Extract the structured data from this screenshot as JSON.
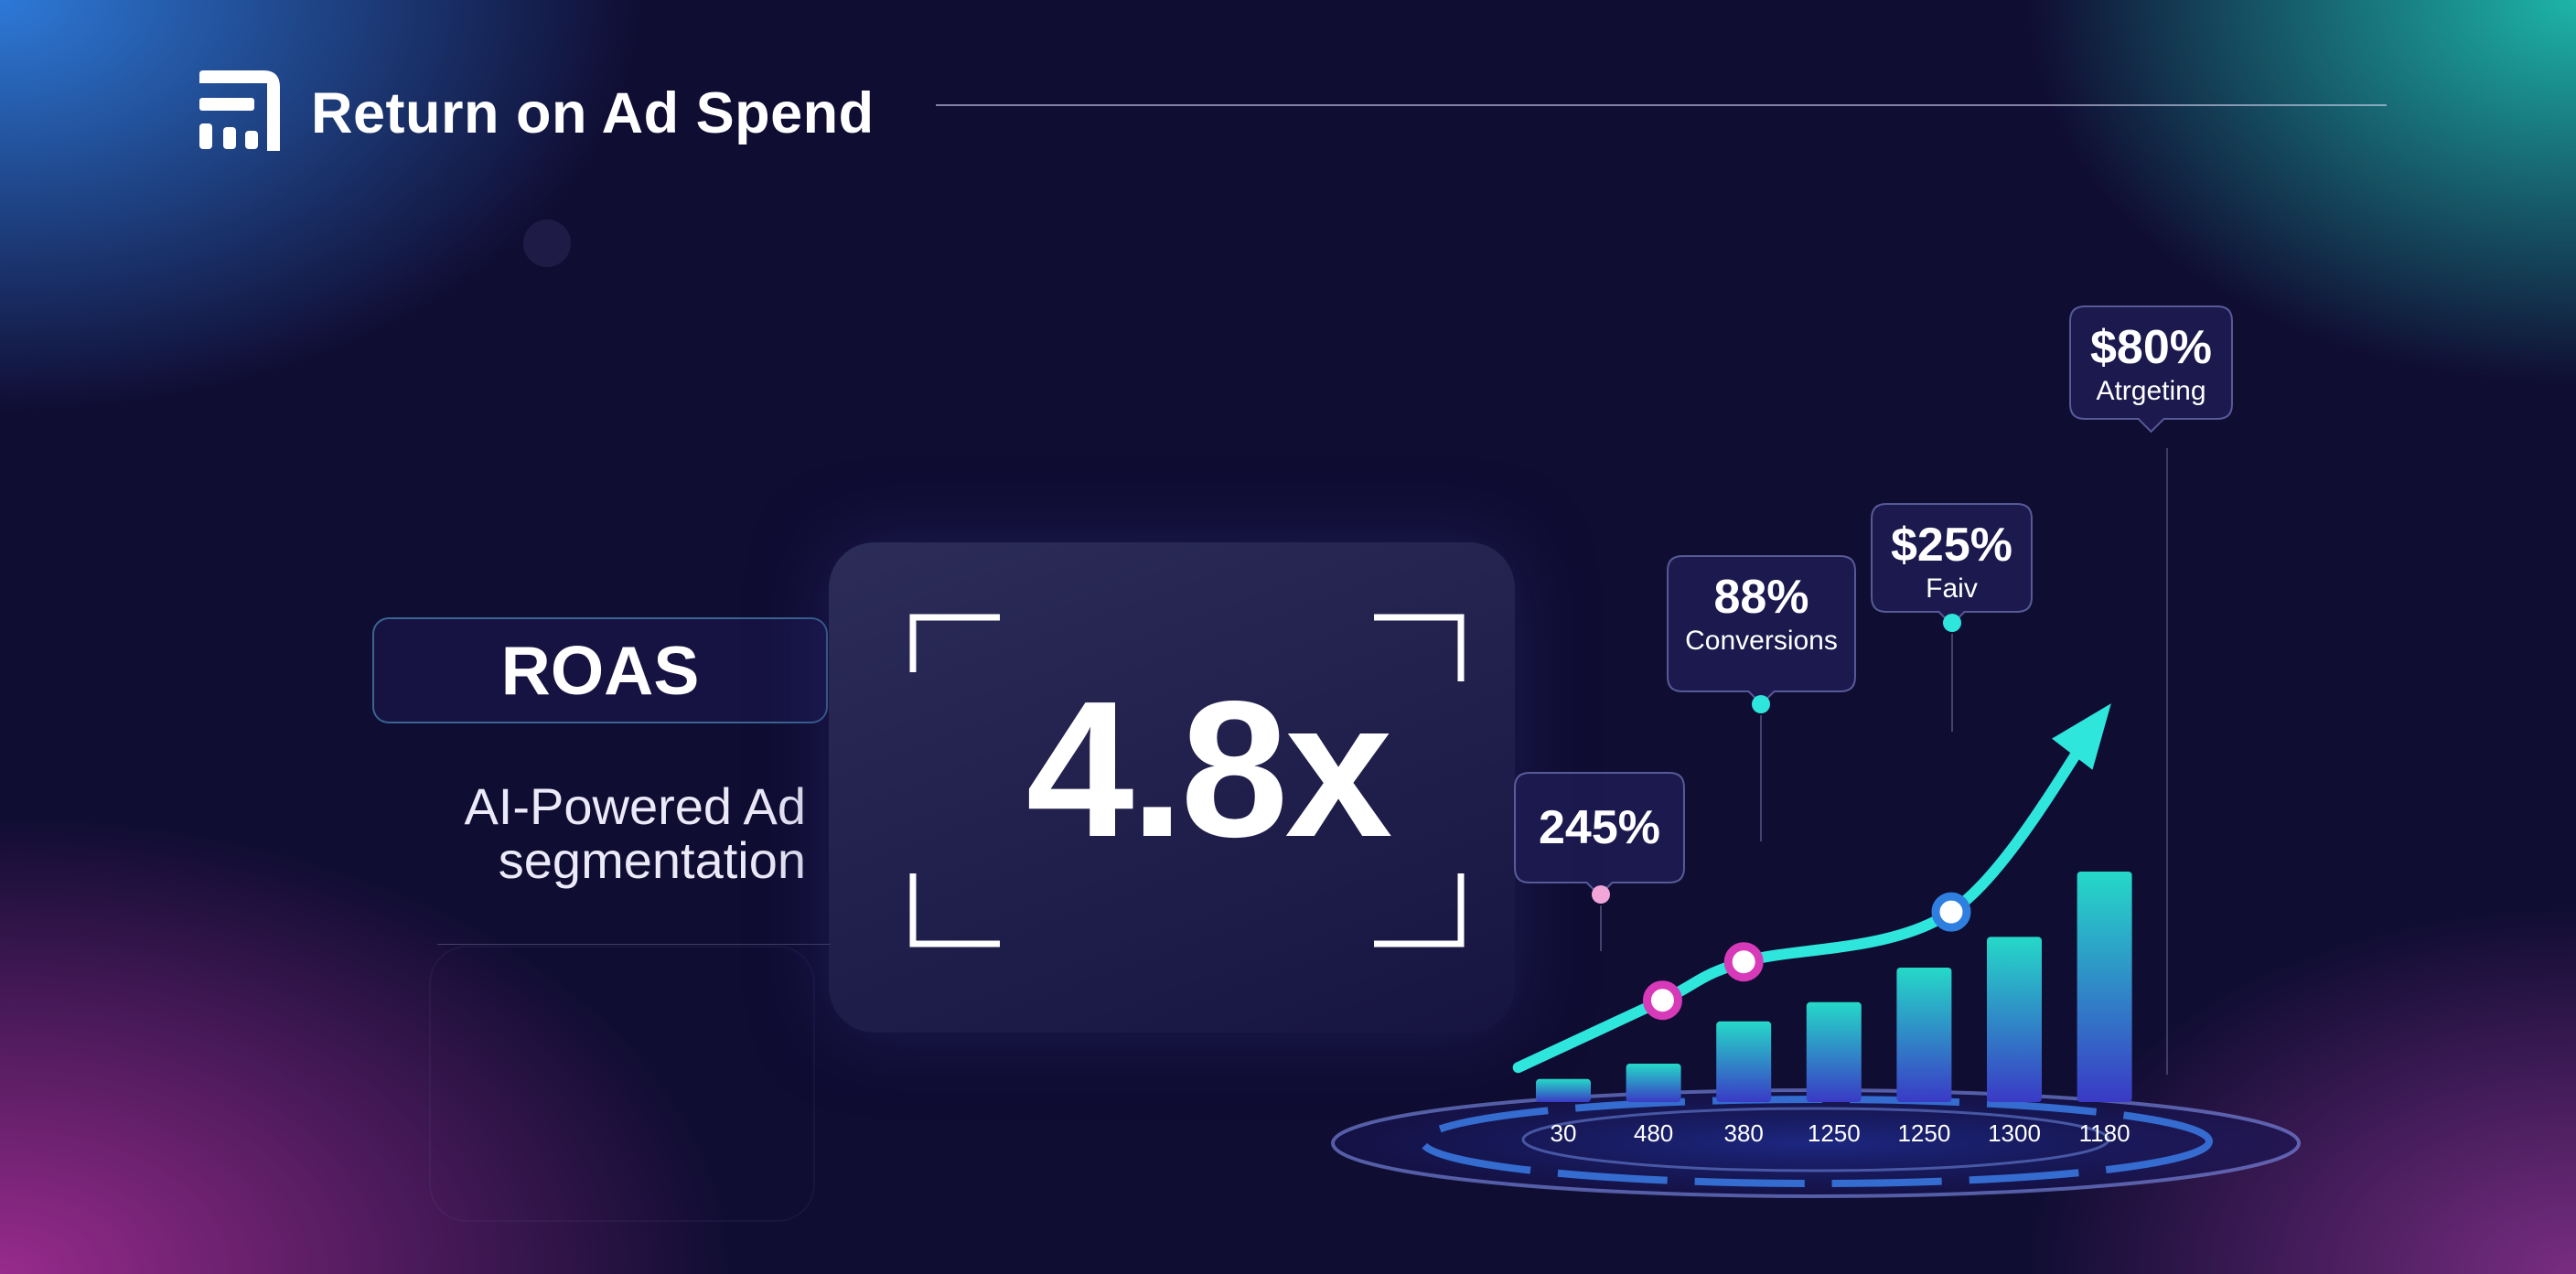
{
  "header": {
    "title": "Return on Ad Spend",
    "logo_icon": "bar-logo-icon"
  },
  "roas_panel": {
    "label": "ROAS",
    "subtitle_line1": "AI-Powered Ad",
    "subtitle_line2": "segmentation"
  },
  "metric": {
    "value": "4.8x"
  },
  "colors": {
    "background": "#0f0c30",
    "accent_teal": "#2ee6dc",
    "accent_magenta": "#d63ab8",
    "accent_blue": "#2f7fe0"
  },
  "chart_data": {
    "type": "bar",
    "categories": [
      "30",
      "480",
      "380",
      "1250",
      "1250",
      "1300",
      "1180"
    ],
    "values": [
      12,
      20,
      42,
      52,
      70,
      86,
      120
    ],
    "trend_line": {
      "x_index": [
        -0.5,
        1.1,
        2.0,
        4.3,
        5.95
      ],
      "y": [
        18,
        53,
        73,
        99,
        200
      ]
    },
    "ylim": [
      0,
      200
    ],
    "annotations": [
      {
        "value": "245%",
        "label": ""
      },
      {
        "value": "88%",
        "label": "Conversions"
      },
      {
        "value": "$25%",
        "label": "Faiv"
      },
      {
        "value": "$80%",
        "label": "Atrgeting"
      }
    ]
  }
}
